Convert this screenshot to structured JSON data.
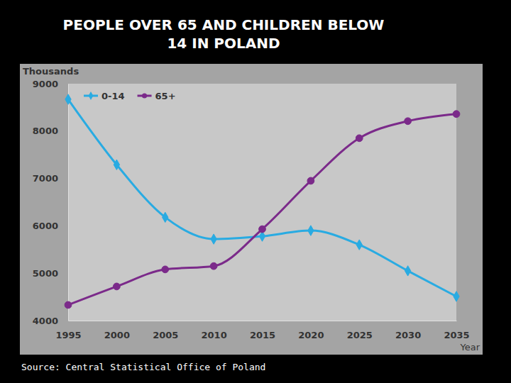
{
  "chart_data": {
    "type": "line",
    "title": "PEOPLE OVER 65 AND CHILDREN BELOW 14 IN POLAND",
    "y_label": "Thousands",
    "x_label": "Year",
    "source": "Source: Central Statistical Office of Poland",
    "x": [
      1995,
      2000,
      2005,
      2010,
      2015,
      2020,
      2025,
      2030,
      2035
    ],
    "series": [
      {
        "name": "0-14",
        "color": "#29abe2",
        "marker": "diamond",
        "values": [
          8670,
          7290,
          6180,
          5720,
          5780,
          5900,
          5600,
          5050,
          4510
        ]
      },
      {
        "name": "65+",
        "color": "#7b2a8a",
        "marker": "circle",
        "values": [
          4330,
          4720,
          5080,
          5150,
          5930,
          6950,
          7850,
          8210,
          8360
        ]
      }
    ],
    "xlim": [
      1995,
      2035
    ],
    "xticks": [
      1995,
      2000,
      2005,
      2010,
      2015,
      2020,
      2025,
      2030,
      2035
    ],
    "ylim": [
      4000,
      9000
    ],
    "yticks": [
      4000,
      5000,
      6000,
      7000,
      8000,
      9000
    ],
    "grid": false,
    "legend": "upper left"
  }
}
